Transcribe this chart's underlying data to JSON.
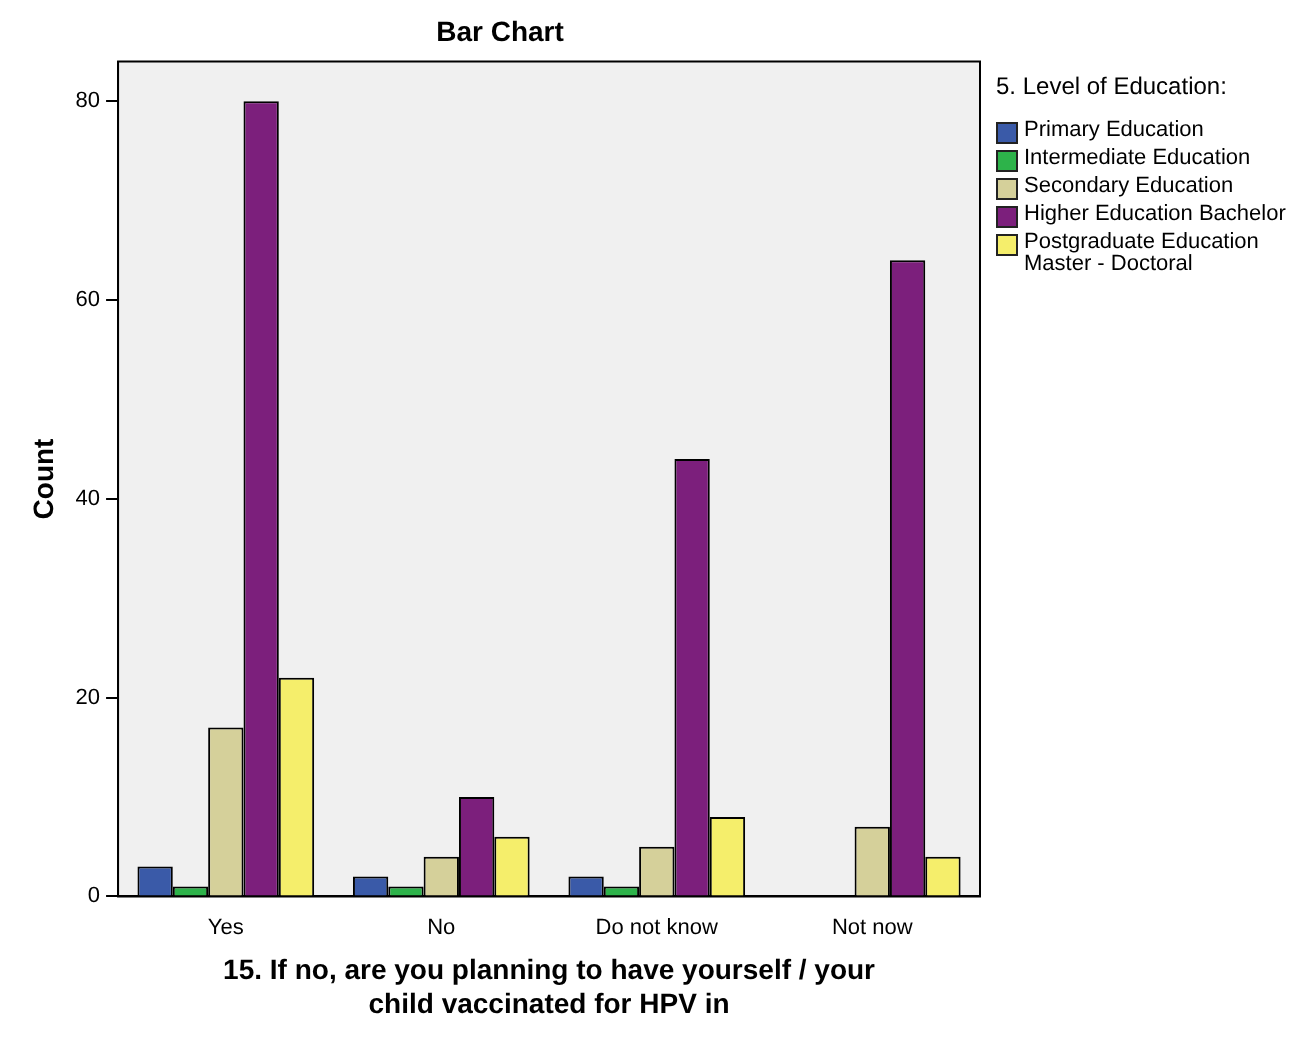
{
  "chart_data": {
    "type": "bar",
    "title": "Bar Chart",
    "xlabel": "15. If no, are you planning to have yourself / your child vaccinated for HPV in",
    "ylabel": "Count",
    "legend_title": "5. Level of Education:",
    "categories": [
      "Yes",
      "No",
      "Do not know",
      "Not now"
    ],
    "series": [
      {
        "name": "Primary Education",
        "color": "#3a5aa8",
        "values": [
          3,
          2,
          2,
          0
        ]
      },
      {
        "name": "Intermediate Education",
        "color": "#2db34a",
        "values": [
          1,
          1,
          1,
          0
        ]
      },
      {
        "name": "Secondary Education",
        "color": "#d5d09a",
        "values": [
          17,
          4,
          5,
          7
        ]
      },
      {
        "name": "Higher Education Bachelor",
        "color": "#7c1f7c",
        "values": [
          80,
          10,
          44,
          64
        ]
      },
      {
        "name": "Postgraduate Education Master - Doctoral",
        "color": "#f5ee6b",
        "values": [
          22,
          6,
          8,
          4
        ]
      }
    ],
    "ylim": [
      0,
      84
    ],
    "yticks": [
      0,
      20,
      40,
      60,
      80
    ],
    "grid": false,
    "legend": "right"
  }
}
